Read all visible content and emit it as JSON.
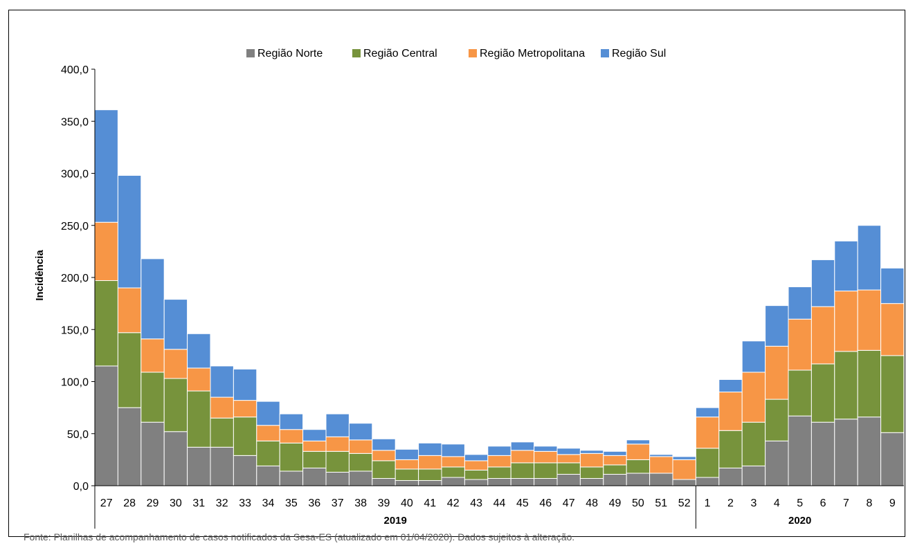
{
  "chart_data": {
    "type": "bar",
    "stacked": true,
    "title": "",
    "xlabel": "",
    "ylabel": "Incidência",
    "ylim": [
      0,
      400
    ],
    "yticks": [
      "0,0",
      "50,0",
      "100,0",
      "150,0",
      "200,0",
      "250,0",
      "300,0",
      "350,0",
      "400,0"
    ],
    "grid": false,
    "legend_position": "top",
    "categories": [
      "27",
      "28",
      "29",
      "30",
      "31",
      "32",
      "33",
      "34",
      "35",
      "36",
      "37",
      "38",
      "39",
      "40",
      "41",
      "42",
      "43",
      "44",
      "45",
      "46",
      "47",
      "48",
      "49",
      "50",
      "51",
      "52",
      "1",
      "2",
      "3",
      "4",
      "5",
      "6",
      "7",
      "8",
      "9"
    ],
    "year_groups": [
      {
        "label": "2019",
        "count": 26
      },
      {
        "label": "2020",
        "count": 9
      }
    ],
    "series": [
      {
        "name": "Região Norte",
        "color": "#808080",
        "values": [
          115,
          75,
          61,
          52,
          37,
          37,
          29,
          19,
          14,
          17,
          13,
          14,
          7,
          5,
          5,
          8,
          6,
          7,
          7,
          7,
          11,
          7,
          11,
          12,
          12,
          6,
          8,
          17,
          19,
          43,
          67,
          61,
          64,
          66,
          51
        ]
      },
      {
        "name": "Região Central",
        "color": "#77933C",
        "values": [
          82,
          72,
          48,
          51,
          54,
          28,
          37,
          24,
          27,
          16,
          20,
          17,
          17,
          11,
          11,
          10,
          9,
          11,
          15,
          15,
          11,
          11,
          9,
          13,
          0,
          0,
          28,
          36,
          42,
          40,
          44,
          56,
          65,
          64,
          74
        ]
      },
      {
        "name": "Região Metropolitana",
        "color": "#F79646",
        "values": [
          56,
          43,
          32,
          28,
          22,
          20,
          16,
          15,
          13,
          10,
          14,
          13,
          10,
          9,
          13,
          10,
          9,
          11,
          12,
          11,
          8,
          13,
          9,
          15,
          16,
          19,
          30,
          37,
          48,
          51,
          49,
          55,
          58,
          58,
          50
        ]
      },
      {
        "name": "Região Sul",
        "color": "#558ED5",
        "values": [
          108,
          108,
          77,
          48,
          33,
          30,
          30,
          23,
          15,
          11,
          22,
          16,
          11,
          10,
          12,
          12,
          6,
          9,
          8,
          5,
          6,
          3,
          4,
          4,
          2,
          3,
          9,
          12,
          30,
          39,
          31,
          45,
          48,
          62,
          34
        ]
      }
    ]
  },
  "source_note": "Fonte:  Planilhas de acompanhamento de casos notificados da Sesa-ES (atualizado em 01/04/2020). Dados sujeitos à alteração."
}
